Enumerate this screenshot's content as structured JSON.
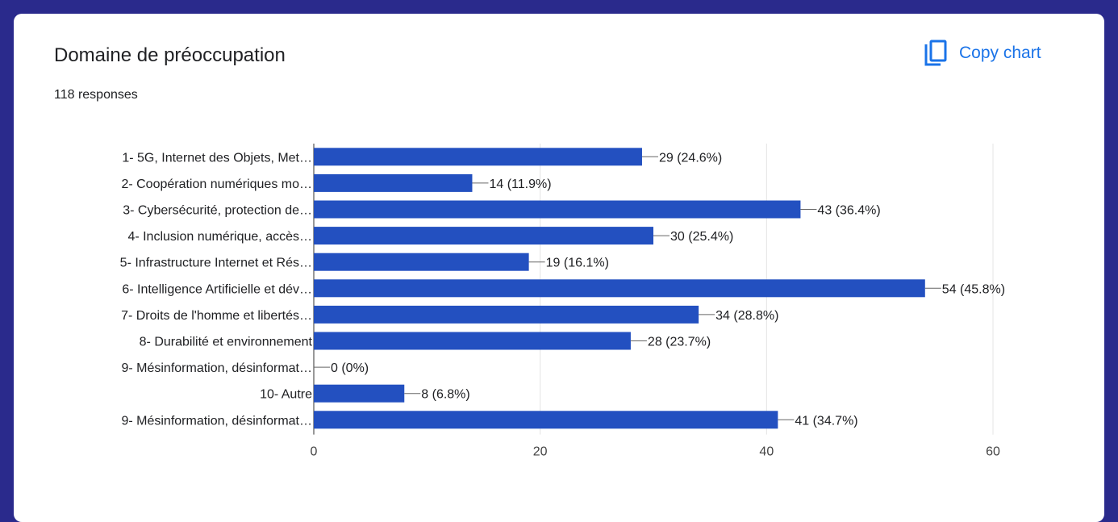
{
  "header": {
    "title": "Domaine de préoccupation",
    "responses": "118 responses",
    "copy_label": "Copy chart"
  },
  "colors": {
    "bar": "#2350c0",
    "accent": "#1a73e8",
    "frame": "#2a2a8c"
  },
  "chart_data": {
    "type": "bar",
    "orientation": "horizontal",
    "categories": [
      "1- 5G, Internet des Objets, Met…",
      "2- Coopération numériques mo…",
      "3- Cybersécurité, protection de…",
      "4- Inclusion numérique, accès…",
      "5- Infrastructure Internet et Rés…",
      "6- Intelligence Artificielle et dév…",
      "7- Droits de l'homme et libertés…",
      "8- Durabilité et environnement",
      "9- Mésinformation, désinformat…",
      "10- Autre",
      "9- Mésinformation, désinformat…"
    ],
    "values": [
      29,
      14,
      43,
      30,
      19,
      54,
      34,
      28,
      0,
      8,
      41
    ],
    "value_labels": [
      "29 (24.6%)",
      "14 (11.9%)",
      "43 (36.4%)",
      "30 (25.4%)",
      "19 (16.1%)",
      "54 (45.8%)",
      "34 (28.8%)",
      "28 (23.7%)",
      "0 (0%)",
      "8 (6.8%)",
      "41 (34.7%)"
    ],
    "xlim": [
      0,
      60
    ],
    "xticks": [
      0,
      20,
      40,
      60
    ],
    "grid": true
  }
}
